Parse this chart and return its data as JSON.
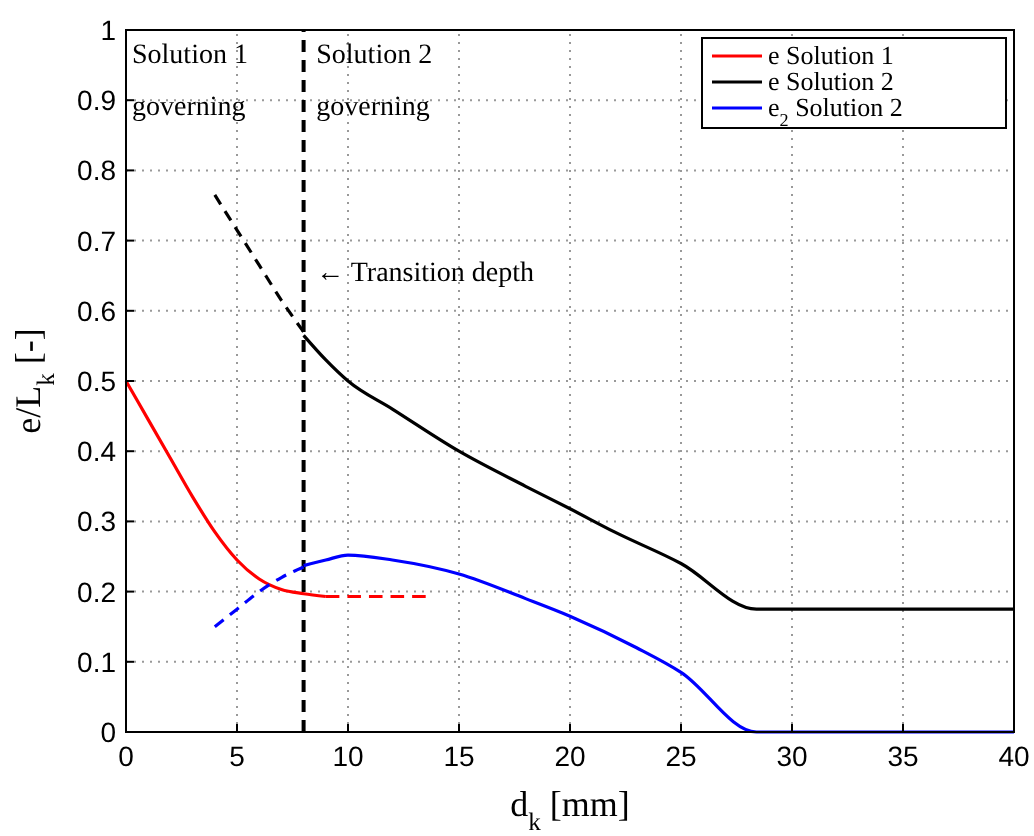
{
  "chart_data": {
    "type": "line",
    "xlabel": "d$_{k}$ [mm]",
    "ylabel": "e/L$_{k}$ [-]",
    "xlim": [
      0,
      40
    ],
    "ylim": [
      0,
      1
    ],
    "xticks": [
      0,
      5,
      10,
      15,
      20,
      25,
      30,
      35,
      40
    ],
    "yticks": [
      0,
      0.1,
      0.2,
      0.3,
      0.4,
      0.5,
      0.6,
      0.7,
      0.8,
      0.9,
      1
    ],
    "grid": true,
    "legend": "top right",
    "series": [
      {
        "name": "e Solution 1",
        "color": "#ff0000",
        "line_style": "solid",
        "x": [
          0,
          1,
          2,
          3,
          4,
          5,
          6,
          7,
          8,
          9
        ],
        "values": [
          0.5,
          0.445,
          0.39,
          0.335,
          0.285,
          0.245,
          0.218,
          0.203,
          0.197,
          0.193
        ]
      },
      {
        "name": "e Solution 2",
        "color": "#000000",
        "line_style": "solid",
        "x": [
          8,
          9,
          10,
          12,
          15,
          18,
          20,
          22,
          25,
          28.4,
          40
        ],
        "values": [
          0.565,
          0.53,
          0.5,
          0.46,
          0.4,
          0.35,
          0.318,
          0.285,
          0.24,
          0.175,
          0.175
        ]
      },
      {
        "name": "e$_{2}$ Solution 2",
        "color": "#0000ff",
        "line_style": "solid",
        "x": [
          8,
          9,
          10,
          12,
          15,
          18,
          20,
          23,
          25,
          28.4,
          40
        ],
        "values": [
          0.237,
          0.245,
          0.252,
          0.245,
          0.225,
          0.19,
          0.165,
          0.12,
          0.085,
          0,
          0
        ]
      },
      {
        "color": "#ff0000",
        "line_style": "dashed",
        "x": [
          9,
          13.5
        ],
        "values": [
          0.193,
          0.193
        ]
      },
      {
        "color": "#000000",
        "line_style": "dashed",
        "x": [
          4,
          5,
          6,
          7,
          8
        ],
        "values": [
          0.765,
          0.715,
          0.665,
          0.615,
          0.57
        ]
      },
      {
        "color": "#0000ff",
        "line_style": "dashed",
        "x": [
          4,
          5,
          6,
          7,
          8
        ],
        "values": [
          0.15,
          0.175,
          0.2,
          0.22,
          0.235
        ]
      }
    ],
    "ref_lines": [
      {
        "axis": "x",
        "value": 8,
        "color": "#000000",
        "line_style": "dashed"
      }
    ],
    "annotations": [
      "Solution 1\ngoverning",
      "Solution 2\ngoverning",
      "← Transition depth"
    ]
  }
}
